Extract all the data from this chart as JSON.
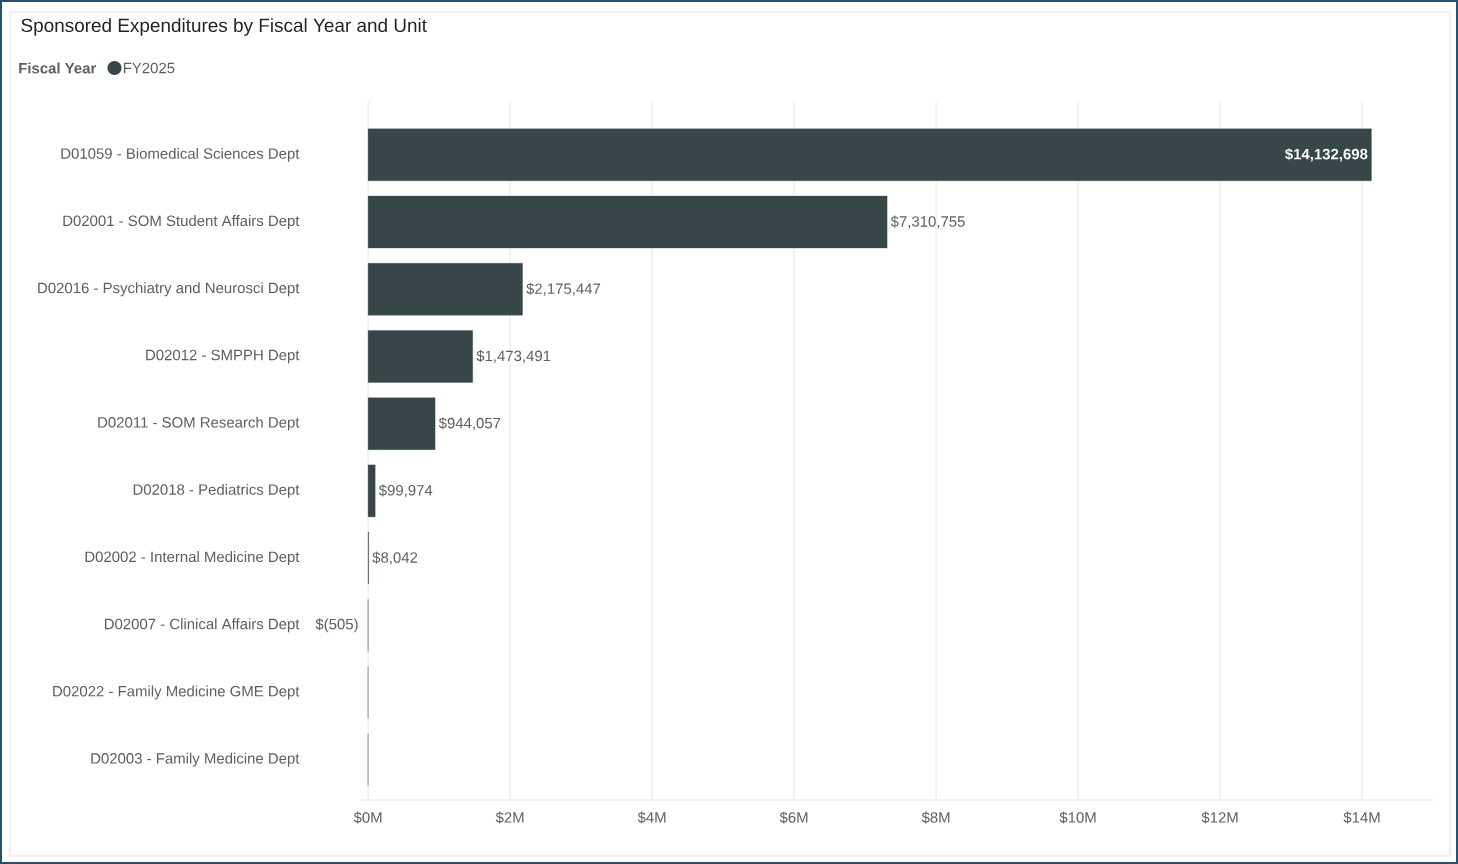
{
  "chart_data": {
    "type": "bar",
    "orientation": "horizontal",
    "title": "Sponsored Expenditures by Fiscal Year and Unit",
    "legend_title": "Fiscal Year",
    "legend": "top left",
    "categories": [
      "D01059 - Biomedical Sciences Dept",
      "D02001 - SOM Student Affairs Dept",
      "D02016 - Psychiatry and Neurosci Dept",
      "D02012 - SMPPH Dept",
      "D02011 - SOM Research Dept",
      "D02018 - Pediatrics Dept",
      "D02002 - Internal Medicine Dept",
      "D02007 - Clinical Affairs Dept",
      "D02022 - Family Medicine GME Dept",
      "D02003 - Family Medicine Dept"
    ],
    "series": [
      {
        "name": "FY2025",
        "color": "#374649",
        "values": [
          14132698,
          7310755,
          2175447,
          1473491,
          944057,
          99974,
          8042,
          -505,
          0,
          0
        ],
        "value_labels": [
          "$14,132,698",
          "$7,310,755",
          "$2,175,447",
          "$1,473,491",
          "$944,057",
          "$99,974",
          "$8,042",
          "$(505)",
          null,
          null
        ]
      }
    ],
    "xlim": [
      -100000,
      15000000
    ],
    "xticks": [
      {
        "value": 0,
        "label": "$0M"
      },
      {
        "value": 2000000,
        "label": "$2M"
      },
      {
        "value": 4000000,
        "label": "$4M"
      },
      {
        "value": 6000000,
        "label": "$6M"
      },
      {
        "value": 8000000,
        "label": "$8M"
      },
      {
        "value": 10000000,
        "label": "$10M"
      },
      {
        "value": 12000000,
        "label": "$12M"
      },
      {
        "value": 14000000,
        "label": "$14M"
      }
    ],
    "grid": "x"
  }
}
